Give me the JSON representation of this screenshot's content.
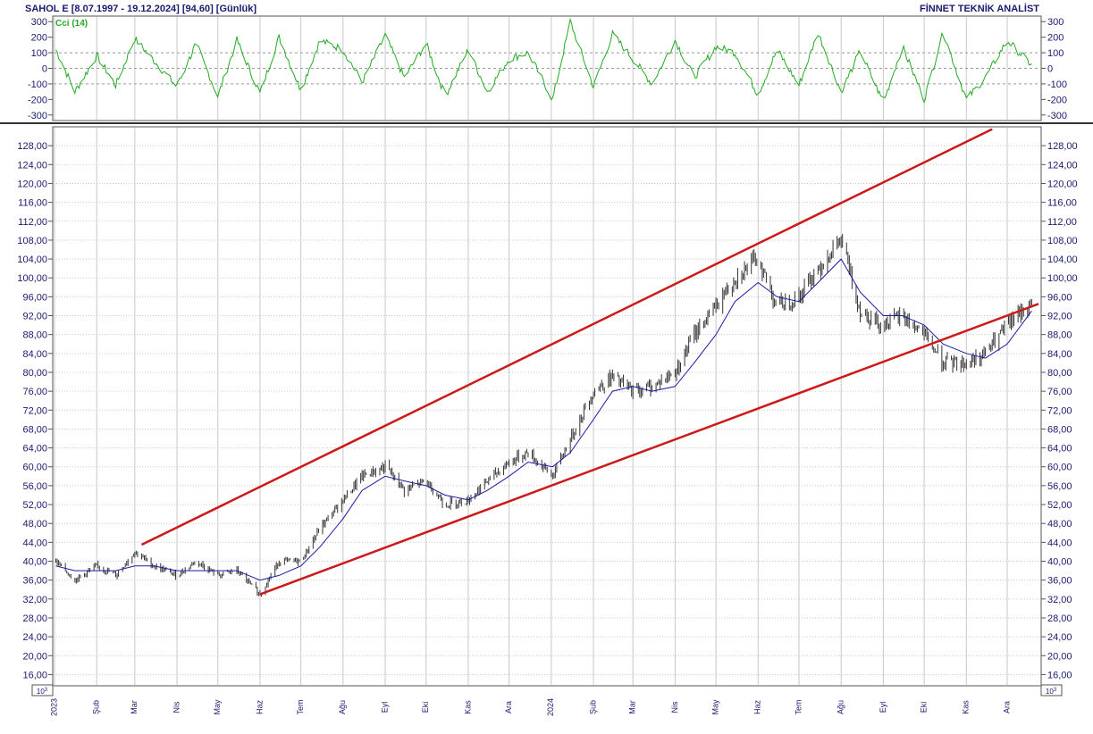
{
  "header": {
    "title": "SAHOL E  [8.07.1997 - 19.12.2024]  [94,60]  [Günlük]",
    "vendor": "FİNNET TEKNİK ANALİST"
  },
  "indicator": {
    "label": "Cci (14)",
    "color": "#22aa22"
  },
  "scale_label": "10^3",
  "colors": {
    "price_bars": "#333333",
    "moving_average": "#1a1aa6",
    "trendlines": "#cc1a1a",
    "grid": "#c8c8c8",
    "axis_text": "#1a1a6e"
  },
  "chart_data": [
    {
      "type": "line",
      "panel": "indicator",
      "series": [
        {
          "name": "Cci (14)"
        }
      ],
      "ylim": [
        -330,
        330
      ],
      "y_ticks": [
        "300",
        "200",
        "100",
        "0",
        "-100",
        "-200",
        "-300"
      ],
      "reference_lines": [
        100,
        0,
        -100
      ],
      "x": [
        "2023-01-02",
        "2023-01-16",
        "2023-02-01",
        "2023-02-15",
        "2023-03-01",
        "2023-03-15",
        "2023-04-01",
        "2023-04-15",
        "2023-05-01",
        "2023-05-15",
        "2023-06-01",
        "2023-06-15",
        "2023-07-01",
        "2023-07-15",
        "2023-08-01",
        "2023-08-15",
        "2023-09-01",
        "2023-09-15",
        "2023-10-01",
        "2023-10-15",
        "2023-11-01",
        "2023-11-15",
        "2023-12-01",
        "2023-12-15",
        "2024-01-02",
        "2024-01-15",
        "2024-02-01",
        "2024-02-15",
        "2024-03-01",
        "2024-03-15",
        "2024-04-01",
        "2024-04-15",
        "2024-05-01",
        "2024-05-15",
        "2024-06-01",
        "2024-06-15",
        "2024-07-01",
        "2024-07-15",
        "2024-08-01",
        "2024-08-15",
        "2024-09-01",
        "2024-09-15",
        "2024-10-01",
        "2024-10-15",
        "2024-11-01",
        "2024-11-15",
        "2024-12-01",
        "2024-12-19"
      ],
      "y": [
        120,
        -150,
        80,
        -110,
        190,
        50,
        -120,
        160,
        -180,
        180,
        -160,
        200,
        -140,
        180,
        120,
        -90,
        210,
        -60,
        160,
        -180,
        120,
        -150,
        60,
        100,
        -200,
        300,
        -120,
        220,
        60,
        -100,
        180,
        -60,
        140,
        100,
        -170,
        120,
        -110,
        230,
        -150,
        110,
        -220,
        140,
        -200,
        230,
        -200,
        -60,
        180,
        20
      ]
    },
    {
      "type": "bar",
      "subtype": "ohlc_price",
      "panel": "price",
      "ylim": [
        14,
        132
      ],
      "y_ticks": [
        "128,00",
        "124,00",
        "120,00",
        "116,00",
        "112,00",
        "108,00",
        "104,00",
        "100,00",
        "96,00",
        "92,00",
        "88,00",
        "84,00",
        "80,00",
        "76,00",
        "72,00",
        "68,00",
        "64,00",
        "60,00",
        "56,00",
        "52,00",
        "48,00",
        "44,00",
        "40,00",
        "36,00",
        "32,00",
        "28,00",
        "24,00",
        "20,00",
        "16,00"
      ],
      "x_labels": [
        "2023",
        "Şub",
        "Mar",
        "Nis",
        "May",
        "Haz",
        "Tem",
        "Ağu",
        "Eyl",
        "Eki",
        "Kas",
        "Ara",
        "2024",
        "Şub",
        "Mar",
        "Nis",
        "May",
        "Haz",
        "Tem",
        "Ağu",
        "Eyl",
        "Eki",
        "Kas",
        "Ara"
      ],
      "x": [
        "2023-01-02",
        "2023-01-16",
        "2023-02-01",
        "2023-02-15",
        "2023-03-01",
        "2023-03-15",
        "2023-04-01",
        "2023-04-15",
        "2023-05-01",
        "2023-05-15",
        "2023-06-01",
        "2023-06-15",
        "2023-07-01",
        "2023-07-15",
        "2023-08-01",
        "2023-08-15",
        "2023-09-01",
        "2023-09-15",
        "2023-10-01",
        "2023-10-15",
        "2023-11-01",
        "2023-11-15",
        "2023-12-01",
        "2023-12-15",
        "2024-01-02",
        "2024-01-15",
        "2024-02-01",
        "2024-02-15",
        "2024-03-01",
        "2024-03-15",
        "2024-04-01",
        "2024-04-15",
        "2024-05-01",
        "2024-05-15",
        "2024-06-01",
        "2024-06-15",
        "2024-07-01",
        "2024-07-15",
        "2024-08-01",
        "2024-08-15",
        "2024-09-01",
        "2024-09-15",
        "2024-10-01",
        "2024-10-15",
        "2024-11-01",
        "2024-11-15",
        "2024-12-01",
        "2024-12-19"
      ],
      "close": [
        40,
        36,
        39,
        37,
        42,
        39,
        37,
        40,
        37,
        38,
        33,
        40,
        40,
        47,
        53,
        58,
        60,
        55,
        57,
        52,
        53,
        57,
        61,
        63,
        58,
        66,
        76,
        79,
        76,
        77,
        80,
        88,
        94,
        100,
        104,
        94,
        96,
        102,
        108,
        93,
        90,
        92,
        88,
        82,
        82,
        84,
        90,
        94.6
      ],
      "moving_average": [
        39,
        38,
        38,
        38,
        39,
        39,
        38,
        38,
        38,
        38,
        36,
        37,
        39,
        43,
        49,
        55,
        58,
        57,
        56,
        54,
        53,
        55,
        58,
        61,
        60,
        63,
        70,
        76,
        77,
        76,
        77,
        82,
        88,
        95,
        99,
        96,
        95,
        99,
        104,
        97,
        92,
        92,
        90,
        86,
        84,
        83,
        86,
        93
      ]
    },
    {
      "type": "line",
      "panel": "price",
      "name": "trend-channel",
      "lines": [
        {
          "from": [
            "2023-03-06",
            43.5
          ],
          "to": [
            "2024-11-20",
            131.5
          ]
        },
        {
          "from": [
            "2023-06-01",
            33
          ],
          "to": [
            "2024-12-24",
            94.5
          ]
        }
      ]
    }
  ]
}
